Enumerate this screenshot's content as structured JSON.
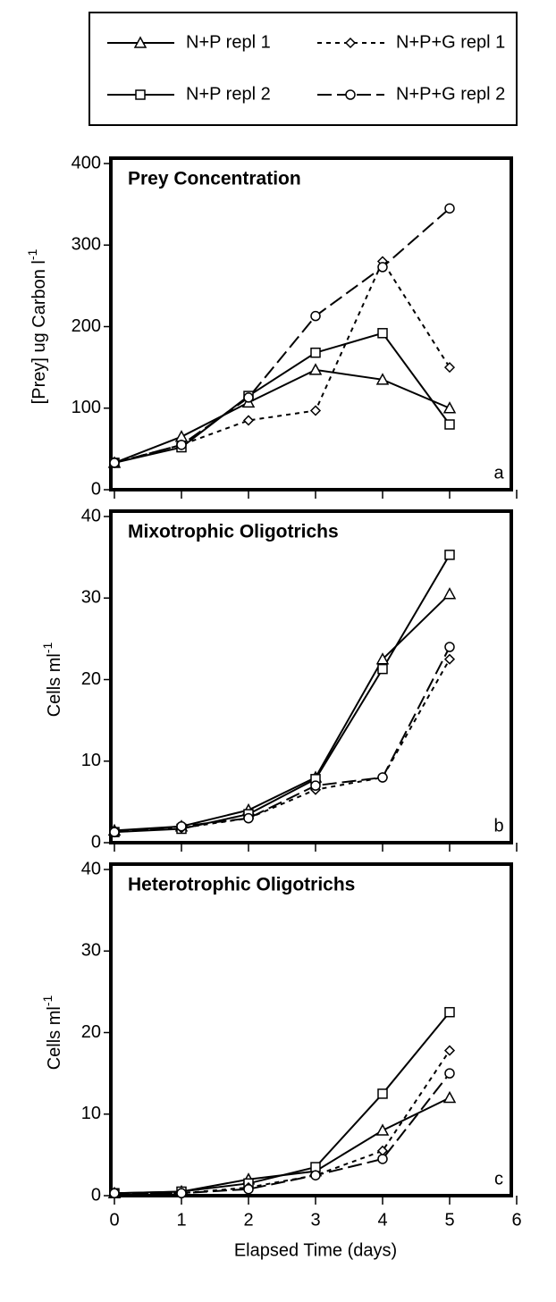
{
  "chart_data": [
    {
      "type": "line",
      "title": "Prey Concentration",
      "panel_label": "a",
      "y_label": "[Prey] ug Carbon l",
      "y_label_sup": "-1",
      "x": [
        0,
        1,
        2,
        3,
        4,
        5
      ],
      "xlim": [
        0,
        6
      ],
      "xticks": [
        0,
        1,
        2,
        3,
        4,
        5,
        6
      ],
      "show_xtick_labels": false,
      "ylim": [
        0,
        400
      ],
      "yticks": [
        0,
        100,
        200,
        300,
        400
      ],
      "series": [
        {
          "name": "N+P repl 1",
          "color": "#000000",
          "marker": "triangle",
          "dash": "solid",
          "values": [
            33,
            65,
            107,
            147,
            135,
            100
          ]
        },
        {
          "name": "N+P repl 2",
          "color": "#000000",
          "marker": "square",
          "dash": "solid",
          "values": [
            33,
            52,
            115,
            168,
            192,
            80
          ]
        },
        {
          "name": "N+P+G repl 1",
          "color": "#000000",
          "marker": "diamond",
          "dash": "short",
          "values": [
            33,
            55,
            85,
            97,
            280,
            150
          ]
        },
        {
          "name": "N+P+G repl 2",
          "color": "#000000",
          "marker": "circle",
          "dash": "long",
          "values": [
            33,
            55,
            113,
            213,
            273,
            345
          ]
        }
      ]
    },
    {
      "type": "line",
      "title": "Mixotrophic Oligotrichs",
      "panel_label": "b",
      "y_label": "Cells ml",
      "y_label_sup": "-1",
      "x": [
        0,
        1,
        2,
        3,
        4,
        5
      ],
      "xlim": [
        0,
        6
      ],
      "xticks": [
        0,
        1,
        2,
        3,
        4,
        5,
        6
      ],
      "show_xtick_labels": false,
      "ylim": [
        0,
        40
      ],
      "yticks": [
        0,
        10,
        20,
        30,
        40
      ],
      "series": [
        {
          "color": "#000000",
          "marker": "triangle",
          "dash": "solid",
          "values": [
            1.5,
            2,
            4,
            8,
            22.5,
            30.5
          ]
        },
        {
          "color": "#000000",
          "marker": "square",
          "dash": "solid",
          "values": [
            1.3,
            1.7,
            3.5,
            7.8,
            21.3,
            35.3
          ]
        },
        {
          "color": "#000000",
          "marker": "diamond",
          "dash": "short",
          "values": [
            1.3,
            1.8,
            3,
            6.5,
            8,
            22.5
          ]
        },
        {
          "color": "#000000",
          "marker": "circle",
          "dash": "long",
          "values": [
            1.3,
            2,
            3,
            7,
            8,
            24
          ]
        }
      ]
    },
    {
      "type": "line",
      "title": "Heterotrophic Oligotrichs",
      "panel_label": "c",
      "y_label": "Cells ml",
      "y_label_sup": "-1",
      "x_label": "Elapsed Time (days)",
      "x": [
        0,
        1,
        2,
        3,
        4,
        5
      ],
      "xlim": [
        0,
        6
      ],
      "xticks": [
        0,
        1,
        2,
        3,
        4,
        5,
        6
      ],
      "show_xtick_labels": true,
      "ylim": [
        0,
        40
      ],
      "yticks": [
        0,
        10,
        20,
        30,
        40
      ],
      "series": [
        {
          "color": "#000000",
          "marker": "triangle",
          "dash": "solid",
          "values": [
            0.3,
            0.5,
            2,
            3,
            8,
            12
          ]
        },
        {
          "color": "#000000",
          "marker": "square",
          "dash": "solid",
          "values": [
            0.3,
            0.5,
            1.5,
            3.5,
            12.5,
            22.5
          ]
        },
        {
          "color": "#000000",
          "marker": "diamond",
          "dash": "short",
          "values": [
            0.3,
            0.3,
            1,
            2.5,
            5.5,
            17.8
          ]
        },
        {
          "color": "#000000",
          "marker": "circle",
          "dash": "long",
          "values": [
            0.3,
            0.3,
            0.8,
            2.5,
            4.5,
            15
          ]
        }
      ]
    }
  ]
}
